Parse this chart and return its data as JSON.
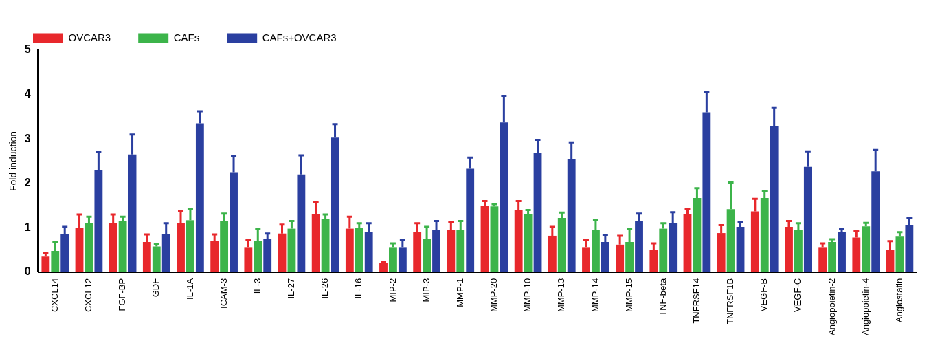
{
  "chart_data": {
    "type": "bar",
    "ylabel": "Fold induction",
    "categories": [
      "CXCL14",
      "CXCL12",
      "FGF-BP",
      "GDF",
      "IL-1A",
      "ICAM-3",
      "IL-3",
      "IL-27",
      "IL-26",
      "IL-16",
      "MIP-2",
      "MIP-3",
      "MMP-1",
      "MMP-20",
      "MMP-10",
      "MMP-13",
      "MMP-14",
      "MMP-15",
      "TNF-beta",
      "TNFRSF14",
      "TNFRSF1B",
      "VEGF-B",
      "VEGF-C",
      "Angiopoietin-2",
      "Angiopoietin-4",
      "Angiostatin"
    ],
    "series": [
      {
        "name": "OVCAR3",
        "color": "#e8282c",
        "values": [
          0.35,
          1.0,
          1.1,
          0.68,
          1.1,
          0.7,
          0.55,
          0.87,
          1.3,
          0.98,
          0.2,
          0.9,
          0.95,
          1.5,
          1.4,
          0.82,
          0.55,
          0.62,
          0.5,
          1.3,
          0.88,
          1.37,
          1.02,
          0.55,
          0.78,
          0.5
        ],
        "errors": [
          0.08,
          0.3,
          0.2,
          0.17,
          0.27,
          0.15,
          0.17,
          0.2,
          0.27,
          0.27,
          0.04,
          0.2,
          0.17,
          0.1,
          0.2,
          0.2,
          0.18,
          0.2,
          0.15,
          0.12,
          0.18,
          0.28,
          0.13,
          0.1,
          0.14,
          0.2
        ]
      },
      {
        "name": "CAFs",
        "color": "#3cb44a",
        "values": [
          0.48,
          1.1,
          1.15,
          0.58,
          1.17,
          1.15,
          0.7,
          0.98,
          1.2,
          1.0,
          0.55,
          0.75,
          0.95,
          1.48,
          1.3,
          1.22,
          0.95,
          0.68,
          0.98,
          1.67,
          1.42,
          1.67,
          0.95,
          0.68,
          1.03,
          0.8
        ],
        "errors": [
          0.2,
          0.15,
          0.1,
          0.06,
          0.25,
          0.17,
          0.27,
          0.17,
          0.1,
          0.1,
          0.1,
          0.27,
          0.2,
          0.05,
          0.1,
          0.12,
          0.22,
          0.3,
          0.12,
          0.22,
          0.6,
          0.16,
          0.15,
          0.06,
          0.08,
          0.1
        ]
      },
      {
        "name": "CAFs+OVCAR3",
        "color": "#2a3fa0",
        "values": [
          0.85,
          2.3,
          2.65,
          0.85,
          3.35,
          2.25,
          0.75,
          2.2,
          3.03,
          0.9,
          0.55,
          0.95,
          2.33,
          3.37,
          2.68,
          2.55,
          0.68,
          1.15,
          1.1,
          3.6,
          1.02,
          3.28,
          2.37,
          0.9,
          2.27,
          1.05
        ],
        "errors": [
          0.17,
          0.4,
          0.45,
          0.25,
          0.27,
          0.37,
          0.12,
          0.43,
          0.3,
          0.2,
          0.17,
          0.2,
          0.25,
          0.6,
          0.3,
          0.37,
          0.15,
          0.17,
          0.25,
          0.45,
          0.1,
          0.43,
          0.35,
          0.07,
          0.48,
          0.17
        ]
      }
    ],
    "ylim": [
      0,
      5
    ],
    "yticks": [
      0,
      1,
      2,
      3,
      4,
      5
    ],
    "grid": false,
    "legend": "top"
  }
}
